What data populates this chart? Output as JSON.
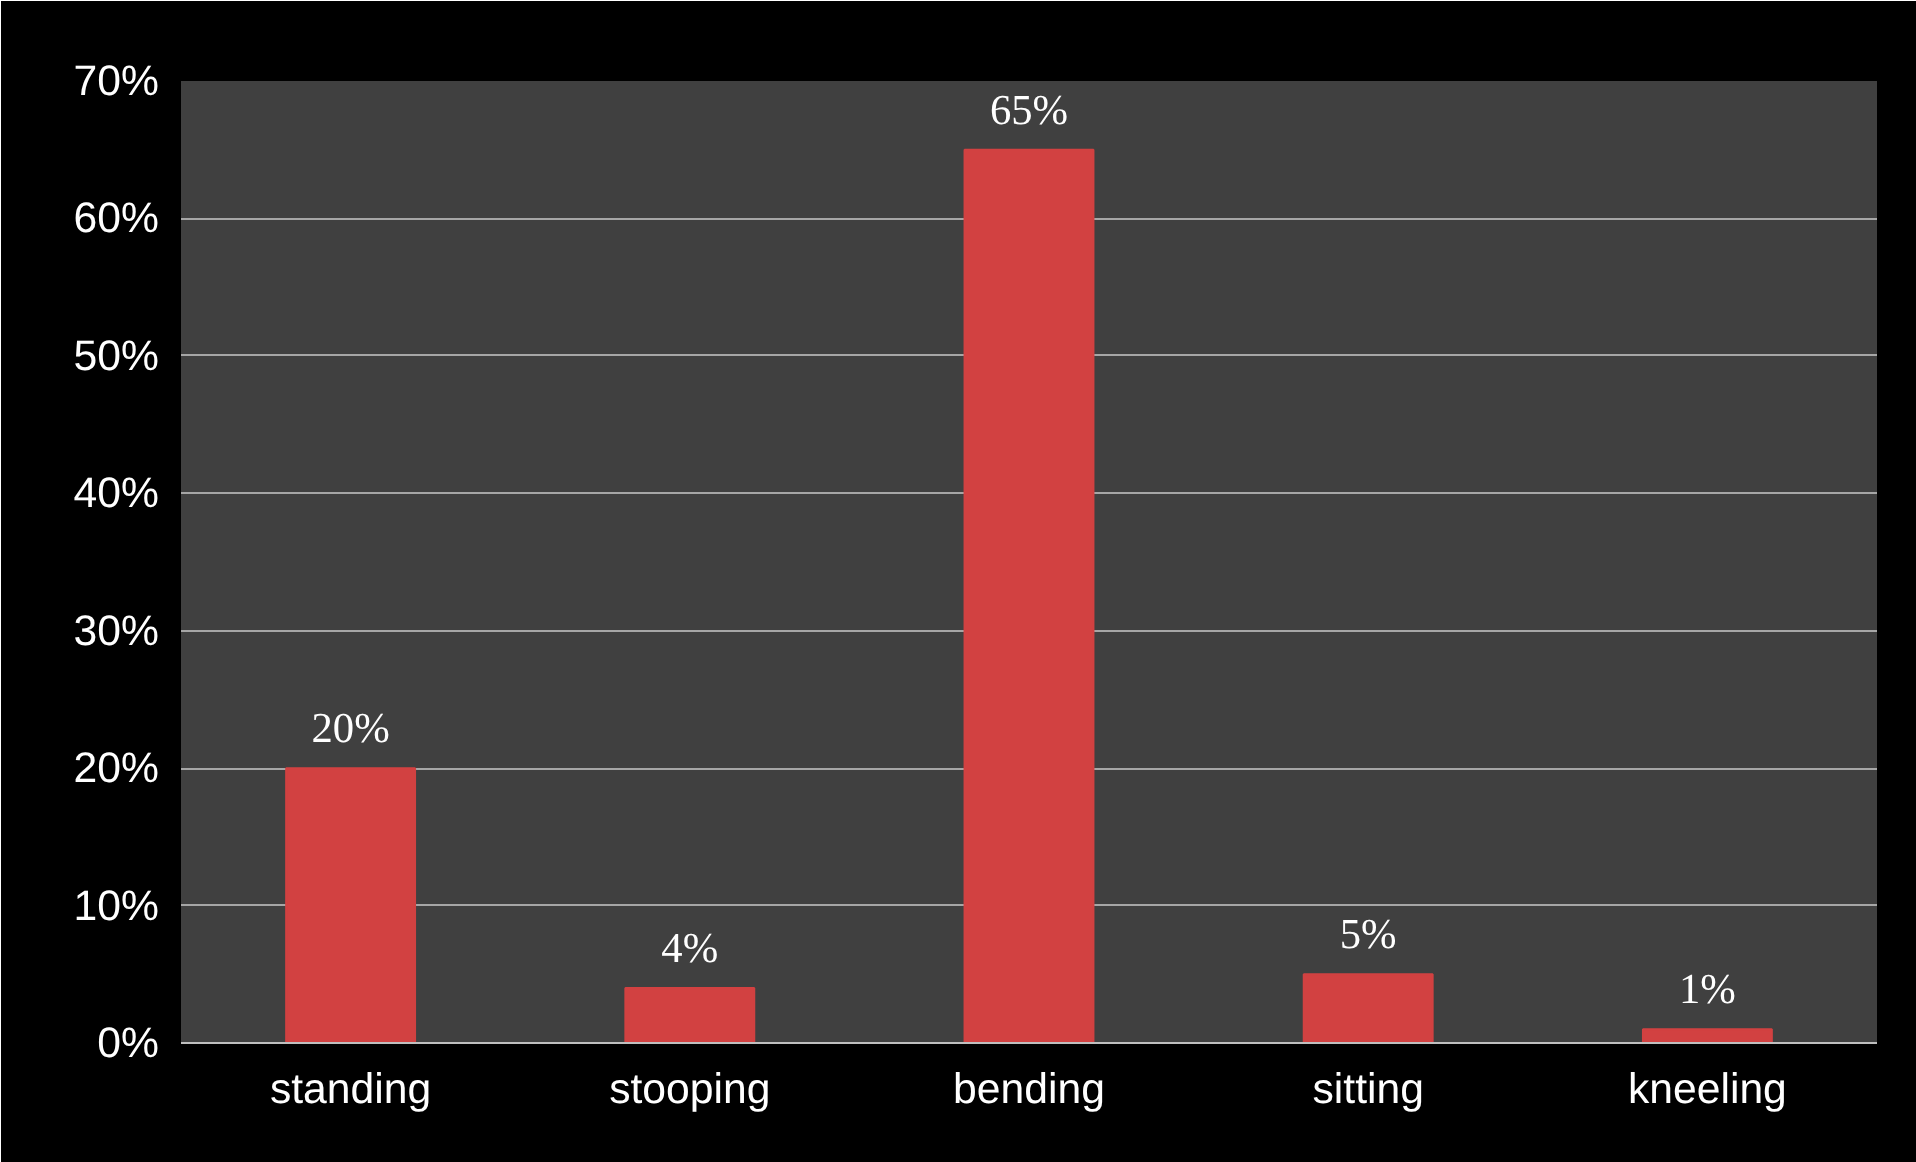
{
  "chart_data": {
    "type": "bar",
    "categories": [
      "standing",
      "stooping",
      "bending",
      "sitting",
      "kneeling"
    ],
    "values": [
      20,
      4,
      65,
      5,
      1
    ],
    "value_labels": [
      "20%",
      "4%",
      "65%",
      "5%",
      "1%"
    ],
    "color": "#d24141",
    "ylim": [
      0,
      70
    ],
    "yticks": [
      {
        "value": 0,
        "label": "0%"
      },
      {
        "value": 10,
        "label": "10%"
      },
      {
        "value": 20,
        "label": "20%"
      },
      {
        "value": 30,
        "label": "30%"
      },
      {
        "value": 40,
        "label": "40%"
      },
      {
        "value": 50,
        "label": "50%"
      },
      {
        "value": 60,
        "label": "60%"
      },
      {
        "value": 70,
        "label": "70%"
      }
    ],
    "grid": "y"
  }
}
